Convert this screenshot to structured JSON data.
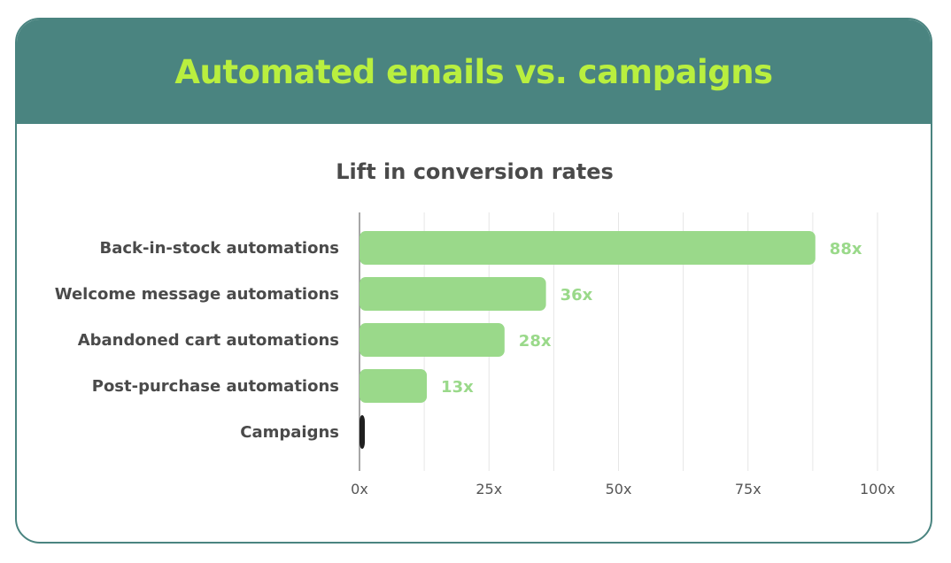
{
  "header": {
    "title": "Automated emails vs. campaigns"
  },
  "colors": {
    "banner": "#4a8480",
    "title": "#b9ef3f",
    "bar": "#9ad98a",
    "campaign_bar": "#1f1f1f"
  },
  "chart_data": {
    "type": "bar",
    "orientation": "horizontal",
    "title": "Lift in conversion rates",
    "categories": [
      "Back-in-stock automations",
      "Welcome message automations",
      "Abandoned cart automations",
      "Post-purchase automations",
      "Campaigns"
    ],
    "values": [
      88,
      36,
      28,
      13,
      1
    ],
    "value_labels": [
      "88x",
      "36x",
      "28x",
      "13x",
      ""
    ],
    "xlim": [
      0,
      100
    ],
    "xticks": [
      0,
      25,
      50,
      75,
      100
    ],
    "xtick_labels": [
      "0x",
      "25x",
      "50x",
      "75x",
      "100x"
    ],
    "grid": true,
    "xlabel": "",
    "ylabel": ""
  }
}
